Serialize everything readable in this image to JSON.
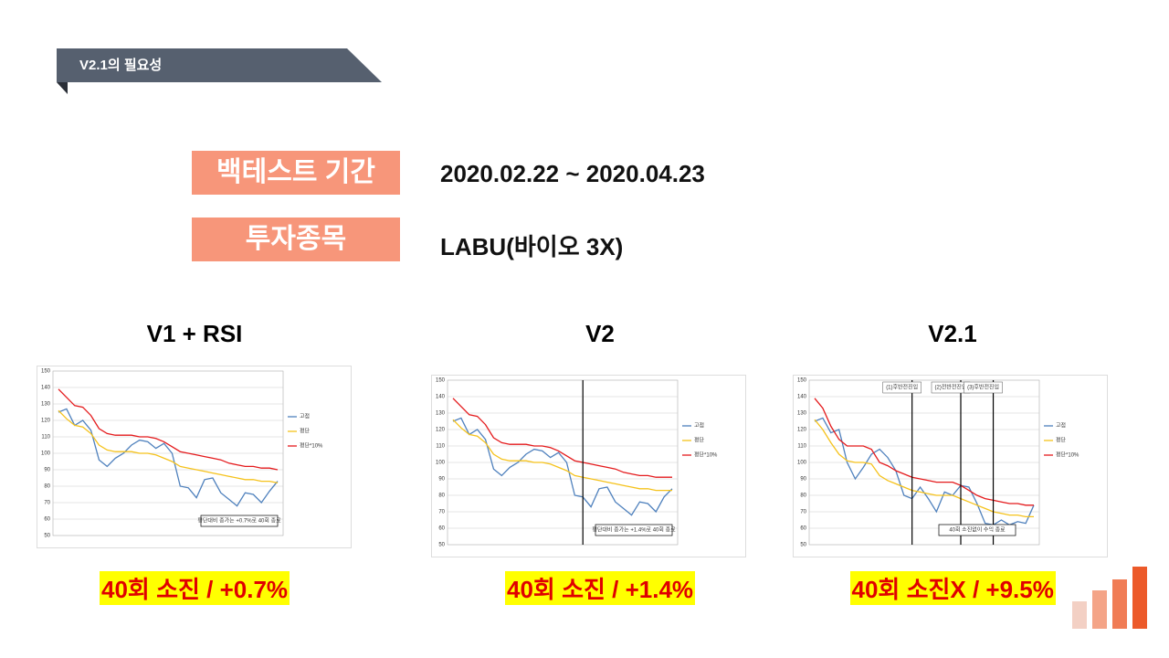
{
  "header": {
    "title": "V2.1의 필요성"
  },
  "info": [
    {
      "label": "백테스트 기간",
      "value": "2020.02.22 ~ 2020.04.23"
    },
    {
      "label": "투자종목",
      "value": "LABU(바이오 3X)"
    }
  ],
  "chart_data": [
    {
      "type": "line",
      "title": "V1 + RSI",
      "caption": "40회 소진 / +0.7%",
      "ylim": [
        50,
        150
      ],
      "yticks": [
        50,
        60,
        70,
        80,
        90,
        100,
        110,
        120,
        130,
        140,
        150
      ],
      "series": [
        {
          "name": "고점",
          "color": "#4f81bd",
          "values": [
            125,
            127,
            117,
            120,
            114,
            96,
            92,
            97,
            100,
            105,
            108,
            107,
            103,
            106,
            100,
            80,
            79,
            73,
            84,
            85,
            76,
            72,
            68,
            76,
            75,
            70,
            77,
            83
          ]
        },
        {
          "name": "평단",
          "color": "#f5c21b",
          "values": [
            126,
            121,
            117,
            116,
            112,
            105,
            102,
            101,
            101,
            101,
            100,
            100,
            99,
            97,
            95,
            92,
            91,
            90,
            89,
            88,
            87,
            86,
            85,
            84,
            84,
            83,
            83,
            82
          ]
        },
        {
          "name": "평단*10%",
          "color": "#e41a1c",
          "values": [
            139,
            134,
            129,
            128,
            123,
            115,
            112,
            111,
            111,
            111,
            110,
            110,
            109,
            107,
            104,
            101,
            100,
            99,
            98,
            97,
            96,
            94,
            93,
            92,
            92,
            91,
            91,
            90
          ]
        }
      ],
      "markers": [],
      "annotation": "평단대비 종가는 +0.7%로 40회 종료"
    },
    {
      "type": "line",
      "title": "V2",
      "caption": "40회 소진 / +1.4%",
      "ylim": [
        50,
        150
      ],
      "yticks": [
        50,
        60,
        70,
        80,
        90,
        100,
        110,
        120,
        130,
        140,
        150
      ],
      "series": [
        {
          "name": "고점",
          "color": "#4f81bd",
          "values": [
            125,
            127,
            117,
            120,
            114,
            96,
            92,
            97,
            100,
            105,
            108,
            107,
            103,
            106,
            100,
            80,
            79,
            73,
            84,
            85,
            76,
            72,
            68,
            76,
            75,
            70,
            79,
            84
          ]
        },
        {
          "name": "평단",
          "color": "#f5c21b",
          "values": [
            126,
            121,
            117,
            116,
            112,
            105,
            102,
            101,
            101,
            101,
            100,
            100,
            99,
            97,
            95,
            92,
            91,
            90,
            89,
            88,
            87,
            86,
            85,
            84,
            84,
            83,
            83,
            83
          ]
        },
        {
          "name": "평단*10%",
          "color": "#e41a1c",
          "values": [
            139,
            134,
            129,
            128,
            123,
            115,
            112,
            111,
            111,
            111,
            110,
            110,
            109,
            107,
            104,
            101,
            100,
            99,
            98,
            97,
            96,
            94,
            93,
            92,
            92,
            91,
            91,
            91
          ]
        }
      ],
      "markers": [
        {
          "x": 16
        }
      ],
      "annotation": "평단대비 종가는 +1.4%로 40회 종료"
    },
    {
      "type": "line",
      "title": "V2.1",
      "caption": "40회 소진X / +9.5%",
      "ylim": [
        50,
        150
      ],
      "yticks": [
        50,
        60,
        70,
        80,
        90,
        100,
        110,
        120,
        130,
        140,
        150
      ],
      "series": [
        {
          "name": "고점",
          "color": "#4f81bd",
          "values": [
            125,
            127,
            118,
            120,
            100,
            90,
            97,
            105,
            108,
            103,
            95,
            80,
            78,
            85,
            78,
            70,
            82,
            80,
            86,
            85,
            75,
            63,
            62,
            65,
            62,
            64,
            63,
            74
          ]
        },
        {
          "name": "평단",
          "color": "#f5c21b",
          "values": [
            126,
            120,
            112,
            105,
            101,
            100,
            100,
            99,
            92,
            89,
            87,
            85,
            83,
            82,
            81,
            80,
            80,
            80,
            78,
            76,
            74,
            72,
            70,
            69,
            68,
            68,
            67,
            67
          ]
        },
        {
          "name": "평단*10%",
          "color": "#e41a1c",
          "values": [
            139,
            133,
            122,
            114,
            110,
            110,
            110,
            108,
            100,
            98,
            95,
            93,
            91,
            90,
            89,
            88,
            88,
            88,
            86,
            83,
            80,
            78,
            77,
            76,
            75,
            75,
            74,
            74
          ]
        }
      ],
      "markers": [
        {
          "x": 12,
          "label": "(1)후반전진입"
        },
        {
          "x": 18,
          "label": "(2)전반전진입"
        },
        {
          "x": 22,
          "label": "(3)후반전진입"
        }
      ],
      "annotation": "40회 소진없이 수익 종료"
    }
  ]
}
